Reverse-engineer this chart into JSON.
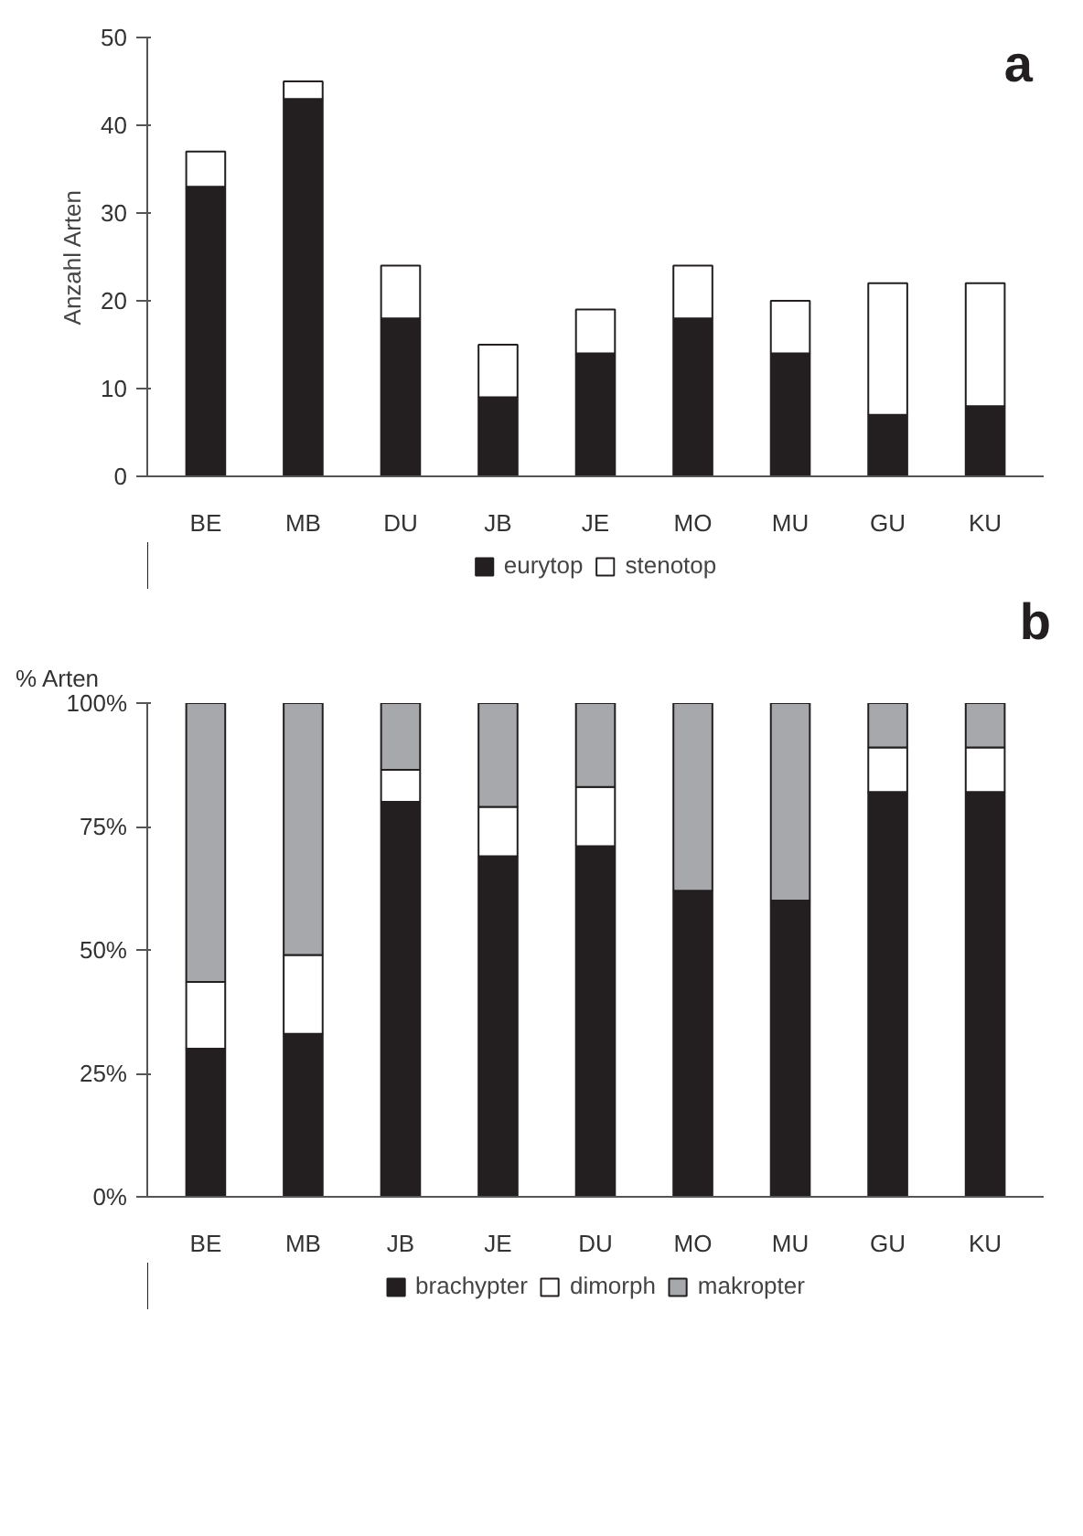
{
  "chart_data": [
    {
      "type": "bar",
      "stacked": true,
      "categories": [
        "BE",
        "MB",
        "DU",
        "JB",
        "JE",
        "MO",
        "MU",
        "GU",
        "KU"
      ],
      "ylabel": "Anzahl Arten",
      "ylim": [
        0,
        50
      ],
      "yticks": [
        0,
        10,
        20,
        30,
        40,
        50
      ],
      "legend": "bottom",
      "annotations": [
        "a"
      ],
      "series": [
        {
          "name": "eurytop",
          "color": "#231f20",
          "values": [
            33,
            43,
            18,
            9,
            14,
            18,
            14,
            7,
            8
          ]
        },
        {
          "name": "stenotop",
          "color": "#ffffff",
          "values": [
            4,
            2,
            6,
            6,
            5,
            6,
            6,
            15,
            14
          ]
        }
      ]
    },
    {
      "type": "bar",
      "stacked": true,
      "categories": [
        "BE",
        "MB",
        "JB",
        "JE",
        "DU",
        "MO",
        "MU",
        "GU",
        "KU"
      ],
      "ylabel": "% Arten",
      "ylim": [
        0,
        100
      ],
      "yticks": [
        {
          "value": 0,
          "label": "0%"
        },
        {
          "value": 25,
          "label": "25%"
        },
        {
          "value": 50,
          "label": "50%"
        },
        {
          "value": 75,
          "label": "75%"
        },
        {
          "value": 100,
          "label": "100%"
        }
      ],
      "legend": "bottom",
      "annotations": [
        "b"
      ],
      "series": [
        {
          "name": "brachypter",
          "color": "#231f20",
          "values": [
            30,
            33,
            80,
            69,
            71,
            62,
            60,
            82,
            82
          ]
        },
        {
          "name": "dimorph",
          "color": "#ffffff",
          "values": [
            13.5,
            16,
            6.5,
            10,
            12,
            null,
            0,
            9,
            9
          ]
        },
        {
          "name": "makropter",
          "color": "#a7a8ab",
          "values": [
            56.5,
            51,
            13.5,
            21,
            17,
            38,
            40,
            9,
            9
          ]
        }
      ]
    }
  ]
}
